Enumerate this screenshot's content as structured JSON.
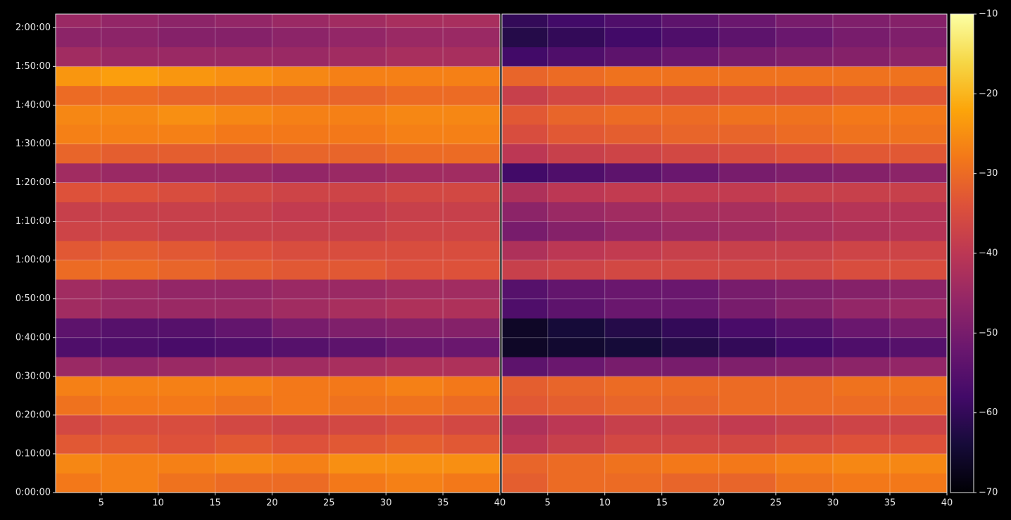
{
  "chart_data": [
    {
      "type": "heatmap",
      "grid": true,
      "xlim": [
        1,
        40
      ],
      "xticks": [
        5,
        10,
        15,
        20,
        25,
        30,
        35,
        40
      ],
      "ylim": [
        0,
        7410
      ],
      "yticks": [
        {
          "value": 0,
          "label": "0:00:00"
        },
        {
          "value": 600,
          "label": "0:10:00"
        },
        {
          "value": 1200,
          "label": "0:20:00"
        },
        {
          "value": 1800,
          "label": "0:30:00"
        },
        {
          "value": 2400,
          "label": "0:40:00"
        },
        {
          "value": 3000,
          "label": "0:50:00"
        },
        {
          "value": 3600,
          "label": "1:00:00"
        },
        {
          "value": 4200,
          "label": "1:10:00"
        },
        {
          "value": 4800,
          "label": "1:20:00"
        },
        {
          "value": 5400,
          "label": "1:30:00"
        },
        {
          "value": 6000,
          "label": "1:40:00"
        },
        {
          "value": 6600,
          "label": "1:50:00"
        },
        {
          "value": 7200,
          "label": "2:00:00"
        }
      ],
      "xbins": [
        1,
        5,
        10,
        15,
        20,
        25,
        30,
        35,
        40
      ],
      "ybins": [
        0,
        300,
        600,
        900,
        1200,
        1500,
        1800,
        2100,
        2400,
        2700,
        3000,
        3300,
        3600,
        3900,
        4200,
        4500,
        4800,
        5100,
        5400,
        5700,
        6000,
        6300,
        6600,
        6900,
        7200,
        7410
      ],
      "values": [
        [
          -28,
          -27,
          -29,
          -30,
          -30,
          -28,
          -27,
          -28
        ],
        [
          -26,
          -27,
          -27,
          -26,
          -27,
          -25,
          -25,
          -25
        ],
        [
          -33,
          -33,
          -34,
          -33,
          -34,
          -33,
          -32,
          -33
        ],
        [
          -36,
          -35,
          -35,
          -36,
          -37,
          -36,
          -35,
          -36
        ],
        [
          -29,
          -28,
          -28,
          -29,
          -28,
          -29,
          -29,
          -30
        ],
        [
          -27,
          -27,
          -27,
          -27,
          -28,
          -28,
          -27,
          -28
        ],
        [
          -45,
          -46,
          -45,
          -44,
          -44,
          -43,
          -42,
          -42
        ],
        [
          -56,
          -56,
          -57,
          -56,
          -55,
          -54,
          -52,
          -52
        ],
        [
          -54,
          -55,
          -55,
          -53,
          -50,
          -49,
          -48,
          -48
        ],
        [
          -44,
          -45,
          -45,
          -45,
          -44,
          -43,
          -42,
          -42
        ],
        [
          -44,
          -45,
          -46,
          -46,
          -45,
          -45,
          -44,
          -44
        ],
        [
          -30,
          -30,
          -31,
          -32,
          -33,
          -33,
          -34,
          -34
        ],
        [
          -33,
          -32,
          -33,
          -34,
          -35,
          -35,
          -35,
          -35
        ],
        [
          -37,
          -37,
          -38,
          -38,
          -38,
          -38,
          -37,
          -37
        ],
        [
          -38,
          -38,
          -38,
          -38,
          -39,
          -39,
          -38,
          -38
        ],
        [
          -34,
          -34,
          -35,
          -36,
          -37,
          -37,
          -36,
          -36
        ],
        [
          -44,
          -45,
          -45,
          -45,
          -46,
          -45,
          -44,
          -44
        ],
        [
          -31,
          -32,
          -32,
          -32,
          -31,
          -31,
          -30,
          -30
        ],
        [
          -27,
          -27,
          -27,
          -28,
          -28,
          -28,
          -27,
          -27
        ],
        [
          -26,
          -26,
          -25,
          -26,
          -27,
          -27,
          -26,
          -26
        ],
        [
          -30,
          -30,
          -31,
          -31,
          -31,
          -31,
          -30,
          -30
        ],
        [
          -24,
          -23,
          -24,
          -25,
          -26,
          -27,
          -27,
          -27
        ],
        [
          -44,
          -45,
          -45,
          -45,
          -45,
          -44,
          -43,
          -43
        ],
        [
          -47,
          -47,
          -48,
          -48,
          -47,
          -46,
          -45,
          -45
        ],
        [
          -45,
          -46,
          -47,
          -46,
          -45,
          -44,
          -43,
          -43
        ]
      ]
    },
    {
      "type": "heatmap",
      "grid": true,
      "sharey": 0,
      "xlim": [
        1,
        40
      ],
      "xticks": [
        5,
        10,
        15,
        20,
        25,
        30,
        35,
        40
      ],
      "xbins": [
        1,
        5,
        10,
        15,
        20,
        25,
        30,
        35,
        40
      ],
      "values": [
        [
          -32,
          -30,
          -30,
          -31,
          -31,
          -29,
          -28,
          -28
        ],
        [
          -31,
          -30,
          -29,
          -28,
          -28,
          -27,
          -26,
          -26
        ],
        [
          -40,
          -38,
          -36,
          -36,
          -36,
          -35,
          -34,
          -34
        ],
        [
          -42,
          -40,
          -38,
          -38,
          -39,
          -38,
          -37,
          -37
        ],
        [
          -33,
          -32,
          -31,
          -31,
          -30,
          -30,
          -30,
          -30
        ],
        [
          -32,
          -31,
          -30,
          -30,
          -30,
          -30,
          -29,
          -29
        ],
        [
          -54,
          -52,
          -50,
          -50,
          -49,
          -48,
          -47,
          -46
        ],
        [
          -66,
          -65,
          -64,
          -62,
          -60,
          -58,
          -56,
          -55
        ],
        [
          -66,
          -64,
          -62,
          -60,
          -57,
          -55,
          -52,
          -50
        ],
        [
          -56,
          -54,
          -52,
          -52,
          -50,
          -48,
          -46,
          -45
        ],
        [
          -55,
          -53,
          -52,
          -52,
          -50,
          -49,
          -48,
          -47
        ],
        [
          -38,
          -37,
          -36,
          -36,
          -36,
          -36,
          -35,
          -35
        ],
        [
          -42,
          -40,
          -39,
          -38,
          -38,
          -38,
          -37,
          -37
        ],
        [
          -50,
          -48,
          -46,
          -45,
          -44,
          -43,
          -42,
          -41
        ],
        [
          -47,
          -45,
          -44,
          -43,
          -43,
          -42,
          -41,
          -41
        ],
        [
          -42,
          -40,
          -39,
          -39,
          -39,
          -38,
          -38,
          -38
        ],
        [
          -58,
          -56,
          -54,
          -52,
          -50,
          -49,
          -48,
          -47
        ],
        [
          -40,
          -38,
          -37,
          -36,
          -35,
          -34,
          -33,
          -33
        ],
        [
          -35,
          -33,
          -32,
          -31,
          -31,
          -30,
          -29,
          -29
        ],
        [
          -33,
          -31,
          -30,
          -30,
          -29,
          -29,
          -28,
          -28
        ],
        [
          -38,
          -36,
          -35,
          -35,
          -34,
          -34,
          -33,
          -33
        ],
        [
          -31,
          -30,
          -29,
          -29,
          -29,
          -29,
          -29,
          -29
        ],
        [
          -58,
          -56,
          -54,
          -52,
          -50,
          -49,
          -48,
          -47
        ],
        [
          -62,
          -60,
          -58,
          -56,
          -54,
          -52,
          -50,
          -49
        ],
        [
          -60,
          -58,
          -56,
          -54,
          -52,
          -50,
          -49,
          -48
        ]
      ]
    }
  ],
  "colorbar": {
    "colormap": "inferno",
    "lim": [
      -70,
      -10
    ],
    "ticks": [
      {
        "value": -70,
        "label": "−70"
      },
      {
        "value": -60,
        "label": "−60"
      },
      {
        "value": -50,
        "label": "−50"
      },
      {
        "value": -40,
        "label": "−40"
      },
      {
        "value": -30,
        "label": "−30"
      },
      {
        "value": -20,
        "label": "−20"
      },
      {
        "value": -10,
        "label": "−10"
      }
    ]
  }
}
